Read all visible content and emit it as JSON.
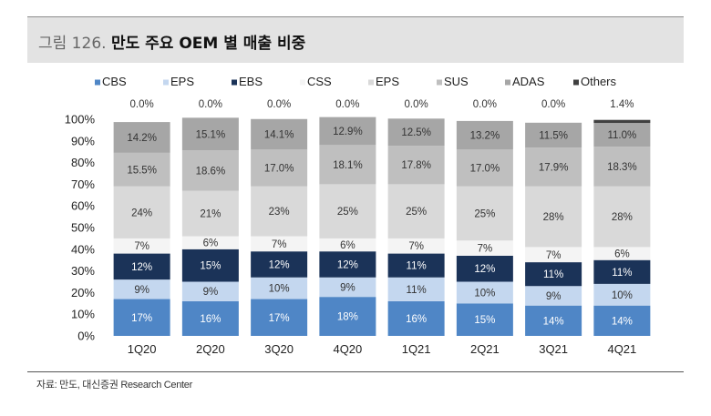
{
  "header": {
    "figure_number": "그림 126.",
    "title": "만도 주요 OEM 별 매출 비중"
  },
  "source": "자료: 만도, 대신증권 Research Center",
  "chart_data": {
    "type": "bar",
    "stacked": true,
    "percent": true,
    "categories": [
      "1Q20",
      "2Q20",
      "3Q20",
      "4Q20",
      "1Q21",
      "2Q21",
      "3Q21",
      "4Q21"
    ],
    "ylim": [
      0,
      100
    ],
    "yticks": [
      0,
      10,
      20,
      30,
      40,
      50,
      60,
      70,
      80,
      90,
      100
    ],
    "ytick_labels": [
      "0%",
      "10%",
      "20%",
      "30%",
      "40%",
      "50%",
      "60%",
      "70%",
      "80%",
      "90%",
      "100%"
    ],
    "legend_position": "top",
    "grid": false,
    "series": [
      {
        "name": "CBS",
        "color": "#4f86c6",
        "label_color": "#ffffff",
        "values": [
          17,
          16,
          17,
          18,
          16,
          15,
          14,
          14
        ],
        "labels": [
          "17%",
          "16%",
          "17%",
          "18%",
          "16%",
          "15%",
          "14%",
          "14%"
        ]
      },
      {
        "name": "EPS",
        "color": "#c4d7ef",
        "label_color": "#333333",
        "values": [
          9,
          9,
          10,
          9,
          11,
          10,
          9,
          10
        ],
        "labels": [
          "9%",
          "9%",
          "10%",
          "9%",
          "11%",
          "10%",
          "9%",
          "10%"
        ]
      },
      {
        "name": "EBS",
        "color": "#1b3358",
        "label_color": "#ffffff",
        "values": [
          12,
          15,
          12,
          12,
          11,
          12,
          11,
          11
        ],
        "labels": [
          "12%",
          "15%",
          "12%",
          "12%",
          "11%",
          "12%",
          "11%",
          "11%"
        ]
      },
      {
        "name": "CSS",
        "color": "#f4f4f4",
        "label_color": "#333333",
        "values": [
          7,
          6,
          7,
          6,
          7,
          7,
          7,
          6
        ],
        "labels": [
          "7%",
          "6%",
          "7%",
          "6%",
          "7%",
          "7%",
          "7%",
          "6%"
        ]
      },
      {
        "name": "EPS",
        "color": "#d9d9d9",
        "label_color": "#333333",
        "values": [
          24,
          21,
          23,
          25,
          25,
          25,
          28,
          28
        ],
        "labels": [
          "24%",
          "21%",
          "23%",
          "25%",
          "25%",
          "25%",
          "28%",
          "28%"
        ]
      },
      {
        "name": "SUS",
        "color": "#bfbfbf",
        "label_color": "#333333",
        "values": [
          15.5,
          18.6,
          17.0,
          18.1,
          17.8,
          17.0,
          17.9,
          18.3
        ],
        "labels": [
          "15.5%",
          "18.6%",
          "17.0%",
          "18.1%",
          "17.8%",
          "17.0%",
          "17.9%",
          "18.3%"
        ]
      },
      {
        "name": "ADAS",
        "color": "#a6a6a6",
        "label_color": "#333333",
        "values": [
          14.2,
          15.1,
          14.1,
          12.9,
          12.5,
          13.2,
          11.5,
          11.0
        ],
        "labels": [
          "14.2%",
          "15.1%",
          "14.1%",
          "12.9%",
          "12.5%",
          "13.2%",
          "11.5%",
          "11.0%"
        ]
      },
      {
        "name": "Others",
        "color": "#404040",
        "label_color": "#333333",
        "values": [
          0.0,
          0.0,
          0.0,
          0.0,
          0.0,
          0.0,
          0.0,
          1.4
        ],
        "labels": [
          "0.0%",
          "0.0%",
          "0.0%",
          "0.0%",
          "0.0%",
          "0.0%",
          "0.0%",
          "1.4%"
        ]
      }
    ]
  }
}
